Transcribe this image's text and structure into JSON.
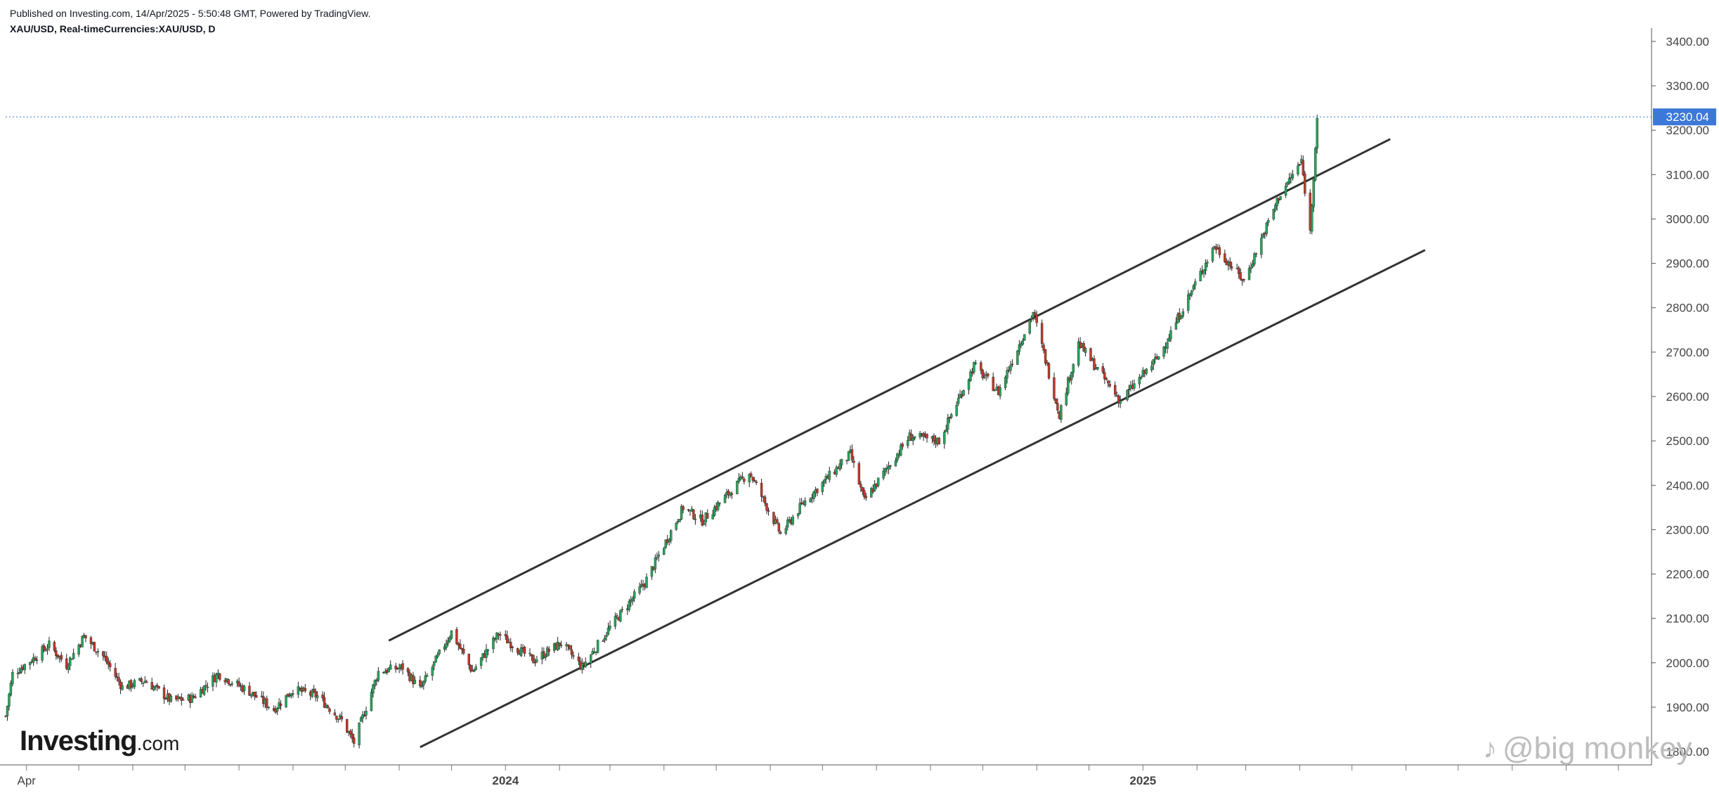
{
  "header": {
    "published": "Published on Investing.com, 14/Apr/2025 - 5:50:48 GMT, Powered by TradingView.",
    "symbol": "XAU/USD, Real-timeCurrencies:XAU/USD, D"
  },
  "logo": {
    "main": "Investing",
    "suffix": ".com"
  },
  "watermark": {
    "icon": "tiktok-icon",
    "text": "@big monkey"
  },
  "colors": {
    "up": "#26a65b",
    "down": "#c0392b",
    "price_line": "#3c78d8",
    "channel": "#333333",
    "axis_text": "#444444"
  },
  "chart_data": {
    "type": "candlestick",
    "title": "XAU/USD, Real-timeCurrencies:XAU/USD, D",
    "y_ticks": [
      1800,
      1900,
      2000,
      2100,
      2200,
      2300,
      2400,
      2500,
      2600,
      2700,
      2800,
      2900,
      3000,
      3100,
      3200,
      3300,
      3400
    ],
    "y_tick_labels": [
      "1800.00",
      "1900.00",
      "2000.00",
      "2100.00",
      "2200.00",
      "2300.00",
      "2400.00",
      "2500.00",
      "2600.00",
      "2700.00",
      "2800.00",
      "2900.00",
      "3000.00",
      "3100.00",
      "3200.00",
      "3300.00",
      "3400.00"
    ],
    "ylim": [
      1770,
      3430
    ],
    "x_labels": [
      {
        "date": "2023-04",
        "label": "Apr"
      },
      {
        "date": "2024-01",
        "label": "2024"
      },
      {
        "date": "2025-01",
        "label": "2025"
      }
    ],
    "xlim": [
      "2023-03-20",
      "2025-10-20"
    ],
    "last_price": 3230.04,
    "last_price_label": "3230.04",
    "price_path": [
      [
        "2023-03-20",
        1880
      ],
      [
        "2023-03-24",
        1975
      ],
      [
        "2023-04-05",
        2010
      ],
      [
        "2023-04-14",
        2040
      ],
      [
        "2023-04-24",
        1995
      ],
      [
        "2023-05-04",
        2060
      ],
      [
        "2023-05-15",
        2015
      ],
      [
        "2023-05-26",
        1945
      ],
      [
        "2023-06-08",
        1960
      ],
      [
        "2023-06-23",
        1915
      ],
      [
        "2023-07-05",
        1920
      ],
      [
        "2023-07-20",
        1975
      ],
      [
        "2023-08-07",
        1935
      ],
      [
        "2023-08-21",
        1895
      ],
      [
        "2023-09-01",
        1940
      ],
      [
        "2023-09-15",
        1925
      ],
      [
        "2023-09-29",
        1870
      ],
      [
        "2023-10-06",
        1820
      ],
      [
        "2023-10-20",
        1980
      ],
      [
        "2023-11-03",
        1990
      ],
      [
        "2023-11-13",
        1940
      ],
      [
        "2023-12-01",
        2070
      ],
      [
        "2023-12-13",
        1980
      ],
      [
        "2023-12-28",
        2065
      ],
      [
        "2024-01-17",
        2005
      ],
      [
        "2024-02-02",
        2045
      ],
      [
        "2024-02-14",
        1990
      ],
      [
        "2024-03-01",
        2080
      ],
      [
        "2024-03-21",
        2180
      ],
      [
        "2024-04-12",
        2350
      ],
      [
        "2024-04-23",
        2320
      ],
      [
        "2024-05-20",
        2430
      ],
      [
        "2024-06-07",
        2290
      ],
      [
        "2024-06-20",
        2360
      ],
      [
        "2024-07-17",
        2470
      ],
      [
        "2024-07-25",
        2365
      ],
      [
        "2024-08-20",
        2510
      ],
      [
        "2024-09-06",
        2500
      ],
      [
        "2024-09-26",
        2670
      ],
      [
        "2024-10-10",
        2610
      ],
      [
        "2024-10-30",
        2790
      ],
      [
        "2024-11-14",
        2560
      ],
      [
        "2024-11-25",
        2720
      ],
      [
        "2024-12-19",
        2590
      ],
      [
        "2025-01-10",
        2690
      ],
      [
        "2025-02-11",
        2940
      ],
      [
        "2025-02-28",
        2860
      ],
      [
        "2025-03-20",
        3050
      ],
      [
        "2025-04-02",
        3130
      ],
      [
        "2025-04-07",
        2970
      ],
      [
        "2025-04-11",
        3230
      ]
    ],
    "channel_upper": [
      [
        "2023-10-26",
        2050
      ],
      [
        "2025-05-23",
        3180
      ]
    ],
    "channel_lower": [
      [
        "2023-11-13",
        1810
      ],
      [
        "2025-06-12",
        2930
      ]
    ]
  }
}
